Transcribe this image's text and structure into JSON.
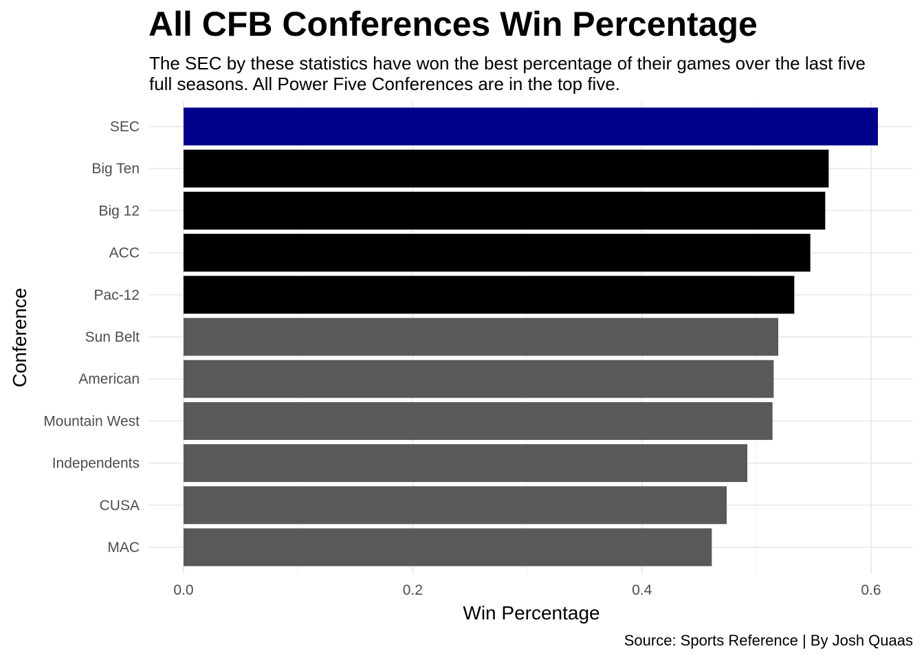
{
  "chart_data": {
    "type": "bar",
    "orientation": "horizontal",
    "title": "All CFB Conferences Win Percentage",
    "subtitle": "The SEC by these statistics have won the best percentage of their games over the last five full seasons. All Power Five Conferences are in the top five.",
    "caption": "Source: Sports Reference | By Josh Quaas",
    "xlabel": "Win Percentage",
    "ylabel": "Conference",
    "xlim": [
      0,
      0.6
    ],
    "x_ticks": [
      "0.0",
      "0.2",
      "0.4",
      "0.6"
    ],
    "grid": true,
    "categories": [
      "SEC",
      "Big Ten",
      "Big 12",
      "ACC",
      "Pac-12",
      "Sun Belt",
      "American",
      "Mountain West",
      "Independents",
      "CUSA",
      "MAC"
    ],
    "values": [
      0.606,
      0.563,
      0.56,
      0.547,
      0.533,
      0.519,
      0.515,
      0.514,
      0.492,
      0.474,
      0.461
    ],
    "bar_colors": [
      "#00008B",
      "#000000",
      "#000000",
      "#000000",
      "#000000",
      "#595959",
      "#595959",
      "#595959",
      "#595959",
      "#595959",
      "#595959"
    ]
  }
}
